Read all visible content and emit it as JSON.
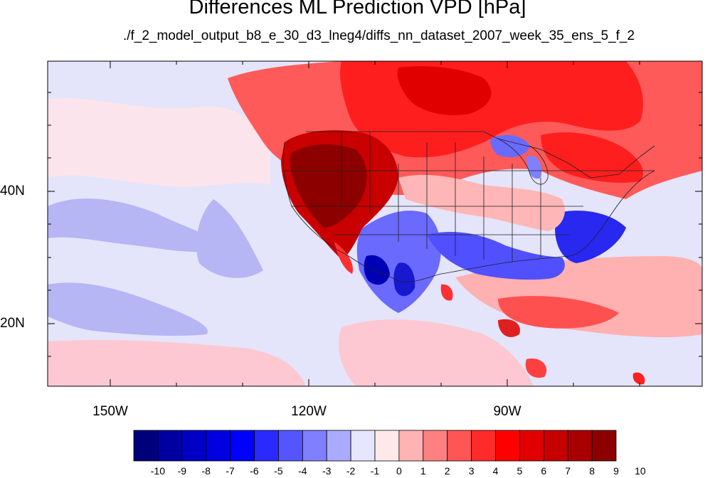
{
  "title": "Differences ML Prediction VPD [hPa]",
  "subtitle": "./f_2_model_output_b8_e_30_d3_lneg4/diffs_nn_dataset_2007_week_35_ens_5_f_2",
  "axes": {
    "lon_labels": [
      "150W",
      "120W",
      "90W"
    ],
    "lat_labels": [
      "40N",
      "20N"
    ]
  },
  "colorbar": {
    "labels": [
      "-10",
      "-9",
      "-8",
      "-7",
      "-6",
      "-5",
      "-4",
      "-3",
      "-2",
      "-1",
      "0",
      "1",
      "2",
      "3",
      "4",
      "5",
      "6",
      "7",
      "8",
      "9",
      "10"
    ],
    "colors": [
      "#00007a",
      "#0000a0",
      "#0000c4",
      "#0000e0",
      "#0000ff",
      "#2a2aff",
      "#5555ff",
      "#7f7fff",
      "#aaaaff",
      "#e6e6ff",
      "#ffe8e8",
      "#ffb3b3",
      "#ff8080",
      "#ff5555",
      "#ff2a2a",
      "#ff0000",
      "#e00000",
      "#c40000",
      "#a80000",
      "#8c0000"
    ]
  },
  "map": {
    "palette": {
      "deep_blue": "#0000b4",
      "blue": "#4646ff",
      "light_blue": "#9a9aff",
      "pale_blue": "#dcdcfa",
      "white": "#fff0f0",
      "pale_red": "#ffc8c8",
      "light_red": "#ff8c8c",
      "red": "#ff2a2a",
      "deep_red": "#c80000",
      "darkest_red": "#8c0000"
    }
  }
}
